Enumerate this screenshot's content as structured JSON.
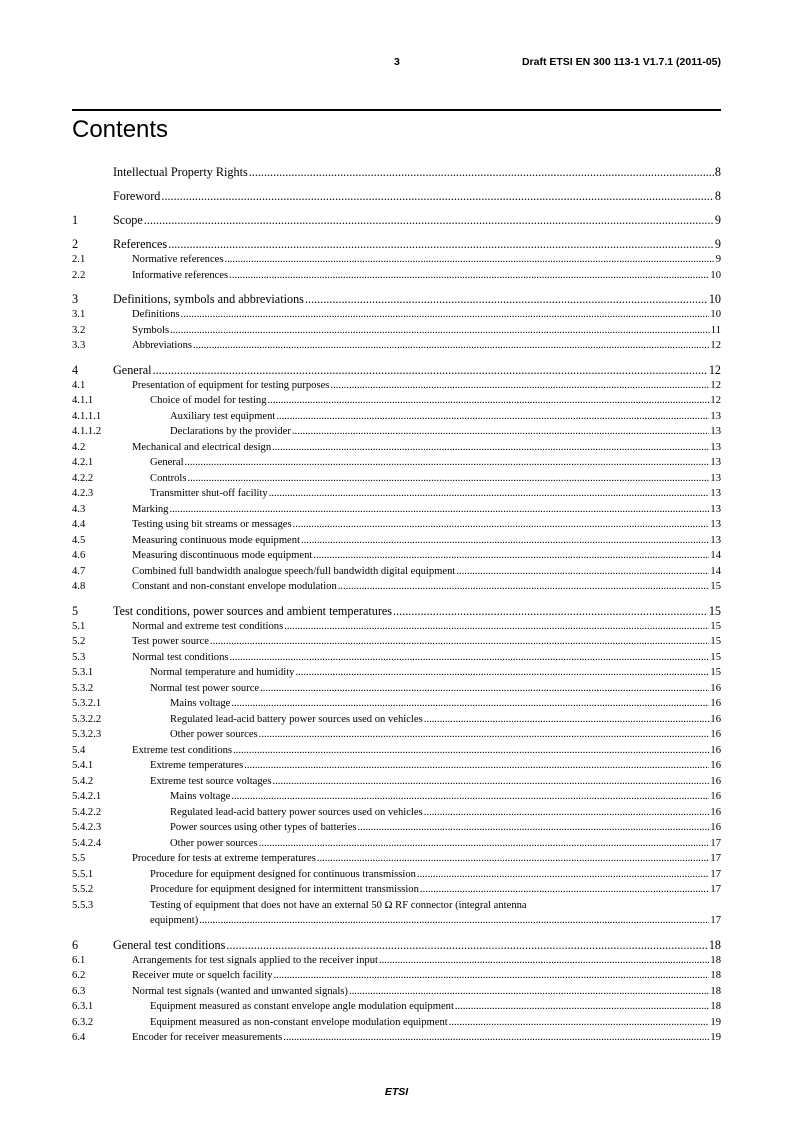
{
  "header": {
    "page_number": "3",
    "document_title": "Draft ETSI EN 300 113-1 V1.7.1 (2011-05)"
  },
  "contents_title": "Contents",
  "toc": [
    {
      "num": "",
      "title": "Intellectual Property Rights",
      "page": "8",
      "level": 1
    },
    {
      "num": "",
      "title": "Foreword",
      "page": "8",
      "level": 1
    },
    {
      "num": "1",
      "title": "Scope",
      "page": "9",
      "level": 1
    },
    {
      "num": "2",
      "title": "References",
      "page": "9",
      "level": 1
    },
    {
      "num": "2.1",
      "title": "Normative references",
      "page": "9",
      "level": 2
    },
    {
      "num": "2.2",
      "title": "Informative references",
      "page": "10",
      "level": 2
    },
    {
      "num": "3",
      "title": "Definitions, symbols and abbreviations",
      "page": "10",
      "level": 1
    },
    {
      "num": "3.1",
      "title": "Definitions",
      "page": "10",
      "level": 2
    },
    {
      "num": "3.2",
      "title": "Symbols",
      "page": "11",
      "level": 2
    },
    {
      "num": "3.3",
      "title": "Abbreviations",
      "page": "12",
      "level": 2
    },
    {
      "num": "4",
      "title": "General",
      "page": "12",
      "level": 1
    },
    {
      "num": "4.1",
      "title": "Presentation of equipment for testing purposes",
      "page": "12",
      "level": 2
    },
    {
      "num": "4.1.1",
      "title": "Choice of model for testing",
      "page": "12",
      "level": 3
    },
    {
      "num": "4.1.1.1",
      "title": "Auxiliary test equipment",
      "page": "13",
      "level": 4
    },
    {
      "num": "4.1.1.2",
      "title": "Declarations by the provider",
      "page": "13",
      "level": 4
    },
    {
      "num": "4.2",
      "title": "Mechanical and electrical design",
      "page": "13",
      "level": 2
    },
    {
      "num": "4.2.1",
      "title": "General",
      "page": "13",
      "level": 3
    },
    {
      "num": "4.2.2",
      "title": "Controls",
      "page": "13",
      "level": 3
    },
    {
      "num": "4.2.3",
      "title": "Transmitter shut-off facility",
      "page": "13",
      "level": 3
    },
    {
      "num": "4.3",
      "title": "Marking",
      "page": "13",
      "level": 2
    },
    {
      "num": "4.4",
      "title": "Testing using bit streams or messages",
      "page": "13",
      "level": 2
    },
    {
      "num": "4.5",
      "title": "Measuring continuous mode equipment",
      "page": "13",
      "level": 2
    },
    {
      "num": "4.6",
      "title": "Measuring discontinuous mode equipment",
      "page": "14",
      "level": 2
    },
    {
      "num": "4.7",
      "title": "Combined full bandwidth analogue speech/full bandwidth digital equipment",
      "page": "14",
      "level": 2
    },
    {
      "num": "4.8",
      "title": "Constant and non-constant envelope modulation",
      "page": "15",
      "level": 2
    },
    {
      "num": "5",
      "title": "Test conditions, power sources and ambient temperatures",
      "page": "15",
      "level": 1
    },
    {
      "num": "5.1",
      "title": "Normal and extreme test conditions",
      "page": "15",
      "level": 2
    },
    {
      "num": "5.2",
      "title": "Test power source",
      "page": "15",
      "level": 2
    },
    {
      "num": "5.3",
      "title": "Normal test conditions",
      "page": "15",
      "level": 2
    },
    {
      "num": "5.3.1",
      "title": "Normal temperature and humidity",
      "page": "15",
      "level": 3
    },
    {
      "num": "5.3.2",
      "title": "Normal test power source",
      "page": "16",
      "level": 3
    },
    {
      "num": "5.3.2.1",
      "title": "Mains voltage",
      "page": "16",
      "level": 4
    },
    {
      "num": "5.3.2.2",
      "title": "Regulated lead-acid battery power sources used on vehicles",
      "page": "16",
      "level": 4
    },
    {
      "num": "5.3.2.3",
      "title": "Other power sources",
      "page": "16",
      "level": 4
    },
    {
      "num": "5.4",
      "title": "Extreme test conditions",
      "page": "16",
      "level": 2
    },
    {
      "num": "5.4.1",
      "title": "Extreme temperatures",
      "page": "16",
      "level": 3
    },
    {
      "num": "5.4.2",
      "title": "Extreme test source voltages",
      "page": "16",
      "level": 3
    },
    {
      "num": "5.4.2.1",
      "title": "Mains voltage",
      "page": "16",
      "level": 4
    },
    {
      "num": "5.4.2.2",
      "title": "Regulated lead-acid battery power sources used on vehicles",
      "page": "16",
      "level": 4
    },
    {
      "num": "5.4.2.3",
      "title": "Power sources using other types of batteries",
      "page": "16",
      "level": 4
    },
    {
      "num": "5.4.2.4",
      "title": "Other power sources",
      "page": "17",
      "level": 4
    },
    {
      "num": "5.5",
      "title": "Procedure for tests at extreme temperatures",
      "page": "17",
      "level": 2
    },
    {
      "num": "5.5.1",
      "title": "Procedure for equipment designed for continuous transmission",
      "page": "17",
      "level": 3
    },
    {
      "num": "5.5.2",
      "title": "Procedure for equipment designed for intermittent transmission",
      "page": "17",
      "level": 3
    },
    {
      "num": "5.5.3",
      "title": "Testing of equipment that does not have an external 50 Ω RF connector (integral antenna",
      "title_cont": "equipment)",
      "page": "17",
      "level": 3
    },
    {
      "num": "6",
      "title": "General test conditions",
      "page": "18",
      "level": 1
    },
    {
      "num": "6.1",
      "title": "Arrangements for test signals applied to the receiver input",
      "page": "18",
      "level": 2
    },
    {
      "num": "6.2",
      "title": "Receiver mute or squelch facility",
      "page": "18",
      "level": 2
    },
    {
      "num": "6.3",
      "title": "Normal test signals (wanted and unwanted signals)",
      "page": "18",
      "level": 2
    },
    {
      "num": "6.3.1",
      "title": "Equipment measured as constant envelope angle modulation equipment",
      "page": "18",
      "level": 3
    },
    {
      "num": "6.3.2",
      "title": "Equipment measured as non-constant envelope modulation equipment",
      "page": "19",
      "level": 3
    },
    {
      "num": "6.4",
      "title": "Encoder for receiver measurements",
      "page": "19",
      "level": 2
    }
  ],
  "footer": "ETSI"
}
